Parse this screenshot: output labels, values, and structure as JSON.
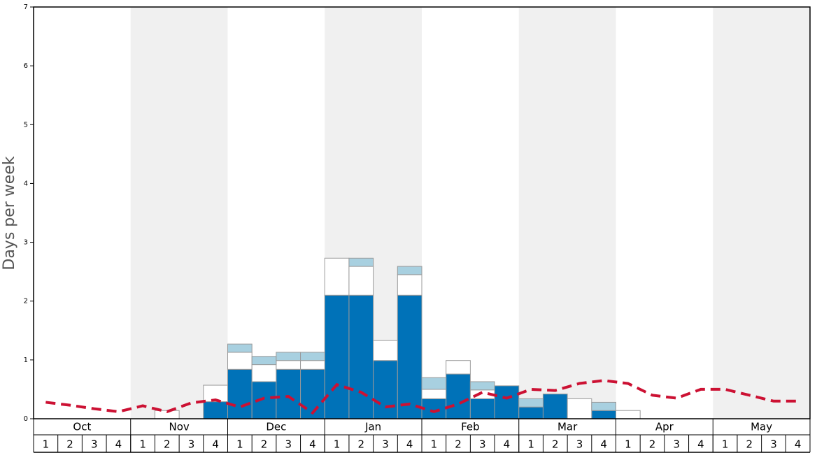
{
  "chart_data": {
    "type": "bar",
    "stacked": true,
    "y_label": "Days per week",
    "months": [
      "Oct",
      "Nov",
      "Dec",
      "Jan",
      "Feb",
      "Mar",
      "Apr",
      "May"
    ],
    "categories": [
      "1",
      "2",
      "3",
      "4",
      "1",
      "2",
      "3",
      "4",
      "1",
      "2",
      "3",
      "4",
      "1",
      "2",
      "3",
      "4",
      "1",
      "2",
      "3",
      "4",
      "1",
      "2",
      "3",
      "4",
      "1",
      "2",
      "3",
      "4",
      "1",
      "2",
      "3",
      "4"
    ],
    "ylim": [
      0,
      7
    ],
    "yticks": [
      0,
      1,
      2,
      3,
      4,
      5,
      6,
      7
    ],
    "series": [
      {
        "color": "#0072b8",
        "values": [
          0,
          0,
          0,
          0,
          0,
          0,
          0,
          0.29,
          0.84,
          0.63,
          0.84,
          0.84,
          2.1,
          2.1,
          0.99,
          2.1,
          0.34,
          0.76,
          0.34,
          0.56,
          0.2,
          0.42,
          0,
          0.14,
          0,
          0,
          0,
          0,
          0,
          0,
          0,
          0
        ]
      },
      {
        "color": "#ffffff",
        "values": [
          0,
          0,
          0,
          0,
          0,
          0.14,
          0,
          0.28,
          0.29,
          0.29,
          0.15,
          0.15,
          0.63,
          0.49,
          0.34,
          0.35,
          0.16,
          0.23,
          0.15,
          0,
          0,
          0,
          0.34,
          0,
          0.14,
          0,
          0,
          0,
          0,
          0,
          0,
          0
        ]
      },
      {
        "color": "#a8d0e0",
        "values": [
          0,
          0,
          0,
          0,
          0,
          0,
          0,
          0,
          0.14,
          0.14,
          0.14,
          0.14,
          0,
          0.14,
          0,
          0.14,
          0.2,
          0,
          0.14,
          0,
          0.14,
          0,
          0,
          0.14,
          0,
          0,
          0,
          0,
          0,
          0,
          0,
          0
        ]
      },
      {
        "type": "line",
        "color": "#cc1133",
        "values": [
          0.28,
          0.23,
          0.17,
          0.12,
          0.22,
          0.12,
          0.27,
          0.32,
          0.2,
          0.35,
          0.38,
          0.1,
          0.58,
          0.45,
          0.2,
          0.25,
          0.12,
          0.25,
          0.45,
          0.35,
          0.5,
          0.48,
          0.6,
          0.65,
          0.6,
          0.4,
          0.35,
          0.5,
          0.5,
          0.4,
          0.3,
          0.3
        ]
      }
    ]
  }
}
